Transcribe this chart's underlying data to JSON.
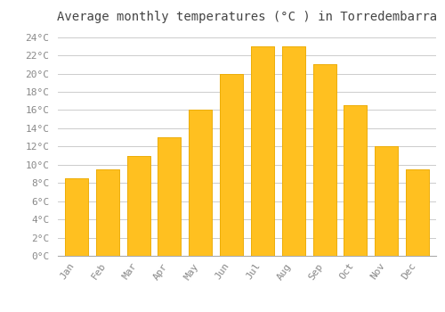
{
  "title": "Average monthly temperatures (°C ) in Torredembarra",
  "months": [
    "Jan",
    "Feb",
    "Mar",
    "Apr",
    "May",
    "Jun",
    "Jul",
    "Aug",
    "Sep",
    "Oct",
    "Nov",
    "Dec"
  ],
  "temperatures": [
    8.5,
    9.5,
    11.0,
    13.0,
    16.0,
    20.0,
    23.0,
    23.0,
    21.0,
    16.5,
    12.0,
    9.5
  ],
  "bar_color": "#FFC020",
  "bar_edge_color": "#E8A800",
  "bar_highlight_color": "#FFD060",
  "background_color": "#FFFFFF",
  "grid_color": "#CCCCCC",
  "ylim": [
    0,
    25
  ],
  "yticks": [
    0,
    2,
    4,
    6,
    8,
    10,
    12,
    14,
    16,
    18,
    20,
    22,
    24
  ],
  "ytick_labels": [
    "0°C",
    "2°C",
    "4°C",
    "6°C",
    "8°C",
    "10°C",
    "12°C",
    "14°C",
    "16°C",
    "18°C",
    "20°C",
    "22°C",
    "24°C"
  ],
  "title_fontsize": 10,
  "tick_fontsize": 8,
  "tick_font_family": "monospace",
  "tick_color": "#888888",
  "figsize": [
    5.0,
    3.5
  ],
  "dpi": 100
}
